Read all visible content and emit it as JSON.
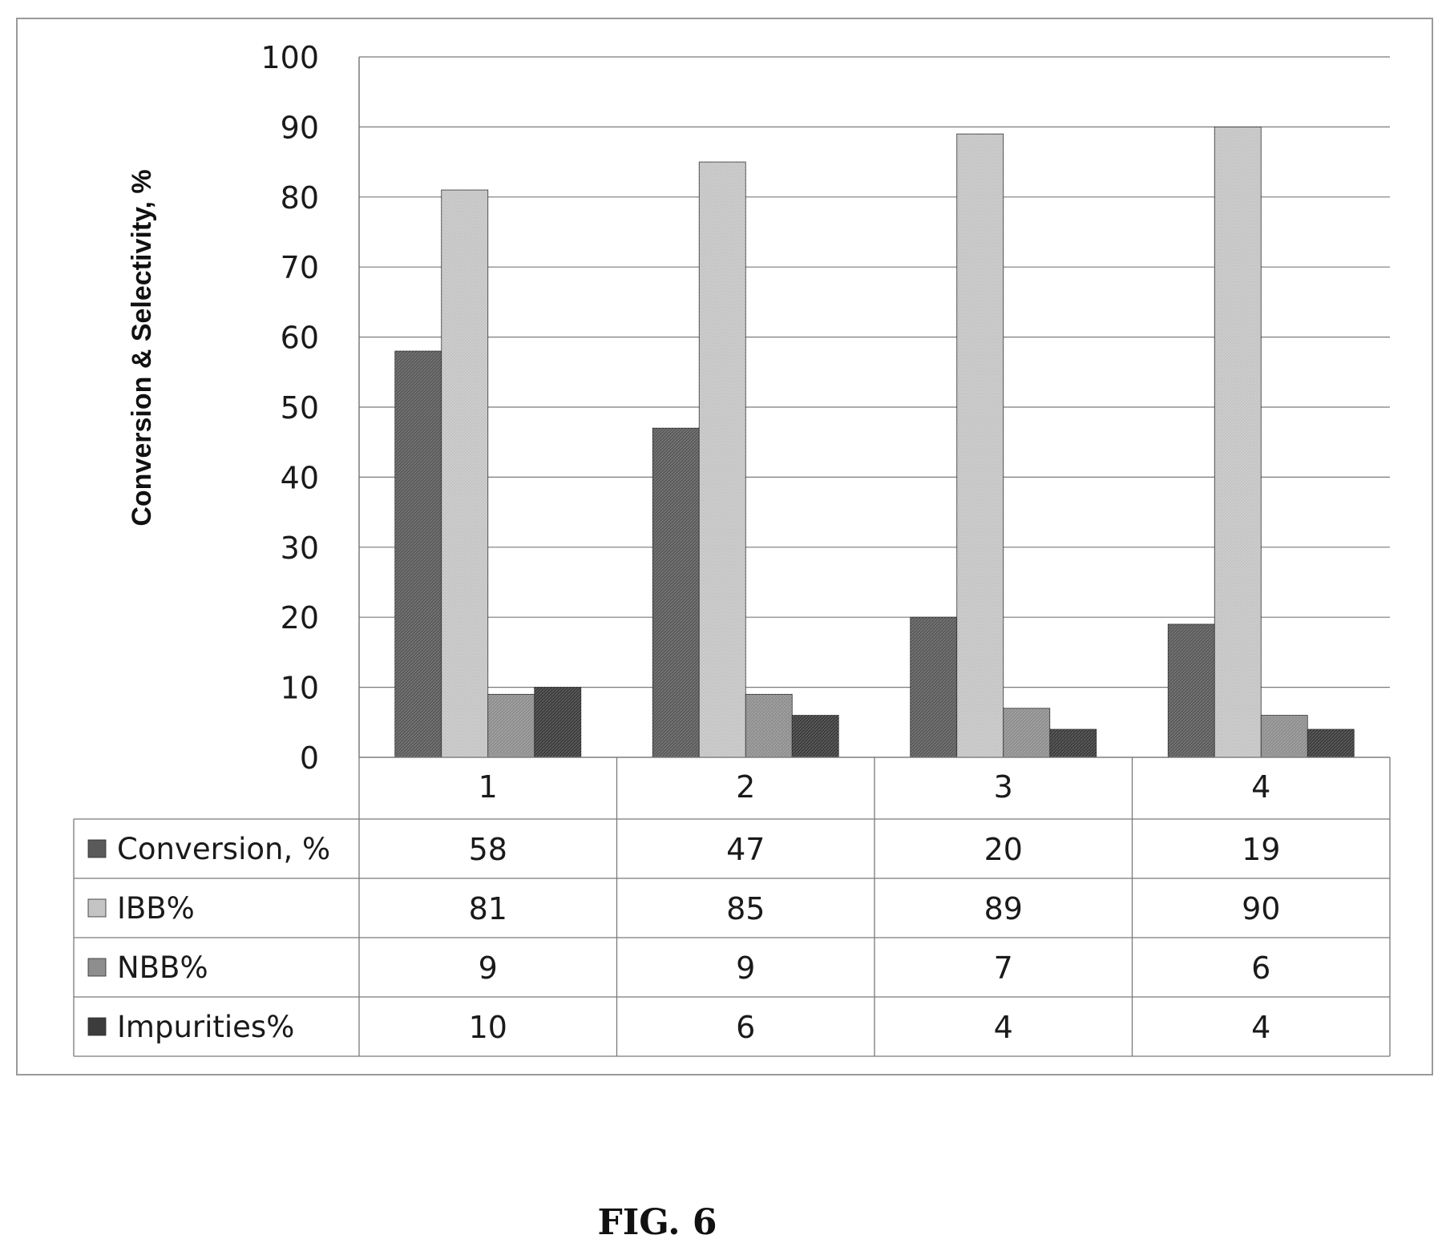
{
  "figure": {
    "caption": "FIG. 6"
  },
  "chart_data": {
    "type": "bar",
    "ylabel": "Conversion & Selectivity, %",
    "ylim": [
      0,
      100
    ],
    "yticks": [
      0,
      10,
      20,
      30,
      40,
      50,
      60,
      70,
      80,
      90,
      100
    ],
    "grid": true,
    "categories": [
      "1",
      "2",
      "3",
      "4"
    ],
    "legend_placement": "data-table",
    "series": [
      {
        "name": "Conversion, %",
        "values": [
          58,
          47,
          20,
          19
        ],
        "color": "#5a5a5a"
      },
      {
        "name": "IBB%",
        "values": [
          81,
          85,
          89,
          90
        ],
        "color": "#c4c4c4"
      },
      {
        "name": "NBB%",
        "values": [
          9,
          9,
          7,
          6
        ],
        "color": "#8e8e8e"
      },
      {
        "name": "Impurities%",
        "values": [
          10,
          6,
          4,
          4
        ],
        "color": "#3c3c3c"
      }
    ]
  }
}
